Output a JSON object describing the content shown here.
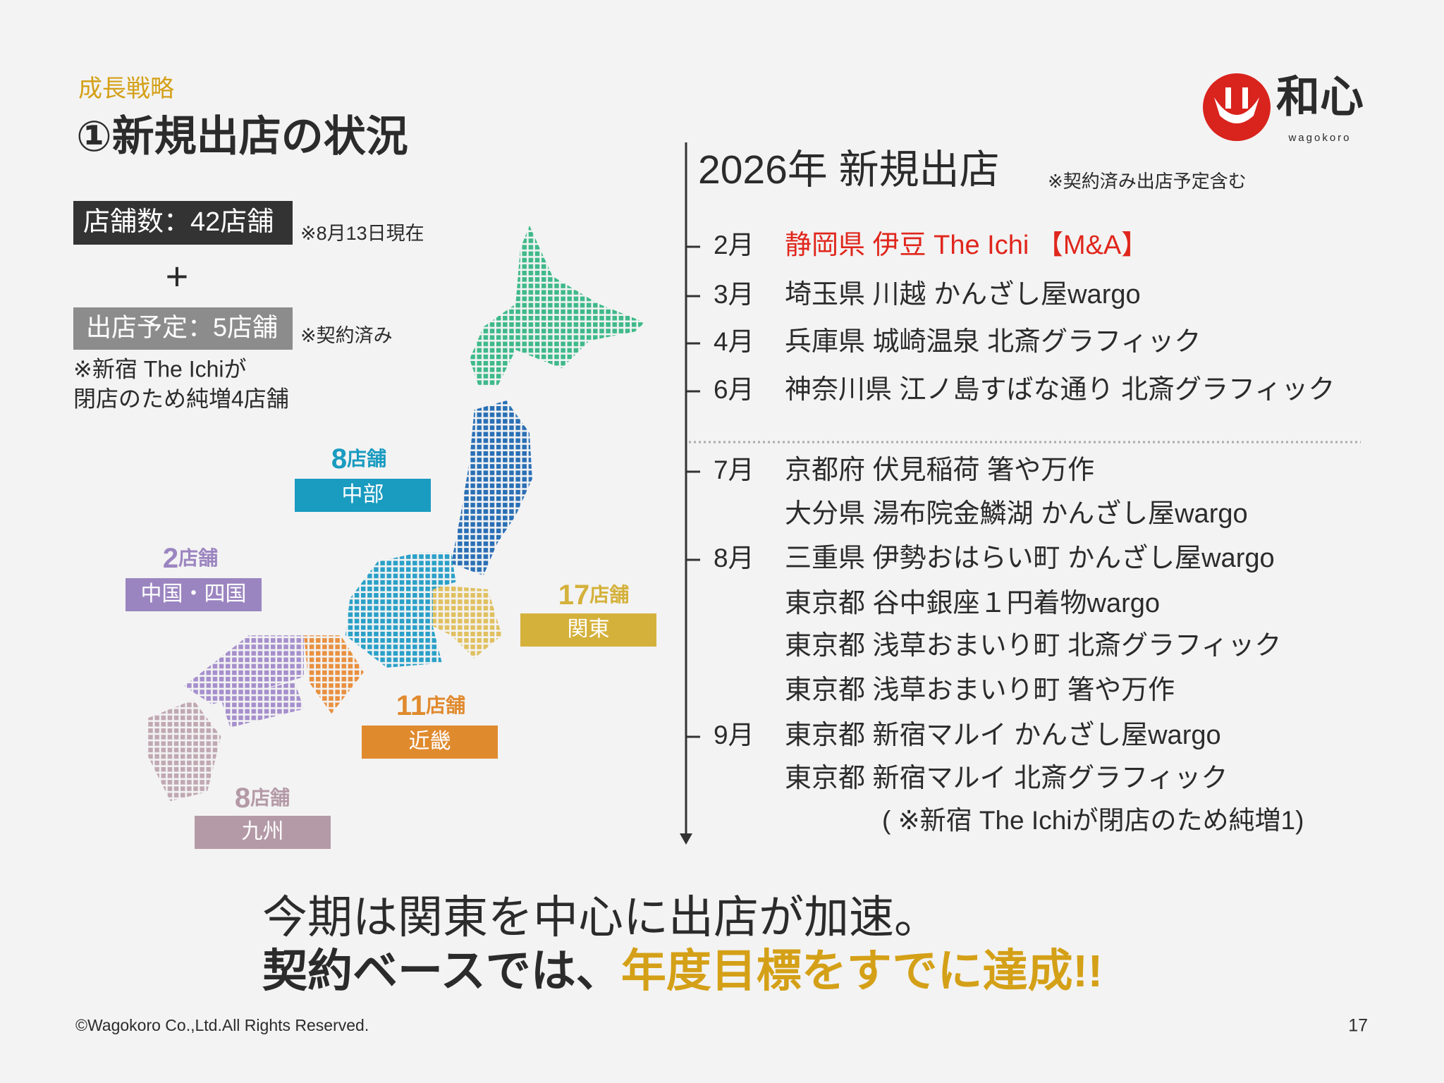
{
  "header": {
    "section": "成長戦略",
    "title": "①新規出店の状況"
  },
  "logo": {
    "name": "和心",
    "sub": "wagokoro"
  },
  "summary": {
    "stores": "店舗数：42店舗",
    "stores_note": "※8月13日現在",
    "plus": "+",
    "planned": "出店予定：5店舗",
    "planned_note": "※契約済み",
    "note_lines": [
      "※新宿 The Ichiが",
      "閉店のため純増4店舗"
    ]
  },
  "regions": [
    {
      "count": 8,
      "unit": "店舗",
      "name": "中部",
      "color": "#1a9bc0"
    },
    {
      "count": 2,
      "unit": "店舗",
      "name": "中国・四国",
      "color": "#9b85c0"
    },
    {
      "count": 17,
      "unit": "店舗",
      "name": "関東",
      "color": "#d4b13b"
    },
    {
      "count": 11,
      "unit": "店舗",
      "name": "近畿",
      "color": "#e08a2e"
    },
    {
      "count": 8,
      "unit": "店舗",
      "name": "九州",
      "color": "#b49aa6"
    }
  ],
  "timeline": {
    "title": "2026年 新規出店",
    "note": "※契約済み出店予定含む",
    "entries": [
      {
        "month": "2月",
        "text": "静岡県 伊豆 The Ichi 【M&A】",
        "color": "#e0261c"
      },
      {
        "month": "3月",
        "text": "埼玉県 川越 かんざし屋wargo"
      },
      {
        "month": "4月",
        "text": "兵庫県 城崎温泉 北斎グラフィック"
      },
      {
        "month": "6月",
        "text": "神奈川県 江ノ島すばな通り 北斎グラフィック"
      },
      {
        "month": "7月",
        "text": "京都府 伏見稲荷 箸や万作"
      },
      {
        "text": "大分県 湯布院金鱗湖 かんざし屋wargo"
      },
      {
        "month": "8月",
        "text": "三重県 伊勢おはらい町 かんざし屋wargo"
      },
      {
        "text": "東京都 谷中銀座１円着物wargo"
      },
      {
        "text": "東京都 浅草おまいり町 北斎グラフィック"
      },
      {
        "text": "東京都 浅草おまいり町 箸や万作"
      },
      {
        "month": "9月",
        "text": "東京都 新宿マルイ かんざし屋wargo"
      },
      {
        "text": "東京都 新宿マルイ 北斎グラフィック"
      }
    ],
    "footnote": "( ※新宿 The Ichiが閉店のため純増1)"
  },
  "conclusion": {
    "line1": "今期は関東を中心に出店が加速。",
    "line2": [
      "契約ベースでは、",
      "年度目標をすでに達成!!"
    ]
  },
  "footer": {
    "copyright": "©Wagokoro Co.,Ltd.All Rights Reserved.",
    "page": "17"
  }
}
